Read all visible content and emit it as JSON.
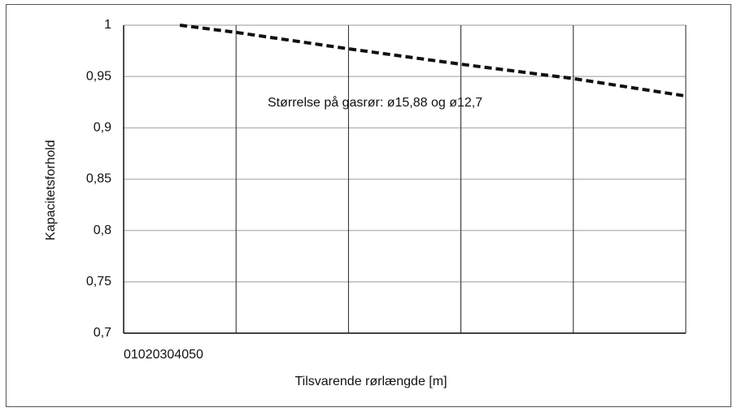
{
  "chart_data": {
    "type": "line",
    "x_label": "Tilsvarende rørlængde [m]",
    "y_label": "Kapacitetsforhold",
    "annotation": "Størrelse på gasrør: ø15,88 og ø12,7",
    "x": [
      5,
      10,
      20,
      30,
      40,
      50
    ],
    "series": [
      {
        "color": "#111111",
        "dashed": true,
        "values": [
          1,
          0.993,
          0.977,
          0.962,
          0.948,
          0.931
        ]
      }
    ],
    "xlim": [
      0,
      50
    ],
    "xticks": [
      0,
      10,
      20,
      30,
      40,
      50
    ],
    "ylim": [
      0.7,
      1
    ],
    "yticks": [
      {
        "value": 0.7,
        "label": "0,7"
      },
      {
        "value": 0.75,
        "label": "0,75"
      },
      {
        "value": 0.8,
        "label": "0,8"
      },
      {
        "value": 0.85,
        "label": "0,85"
      },
      {
        "value": 0.9,
        "label": "0,9"
      },
      {
        "value": 0.95,
        "label": "0,95"
      },
      1
    ],
    "grid": true
  }
}
